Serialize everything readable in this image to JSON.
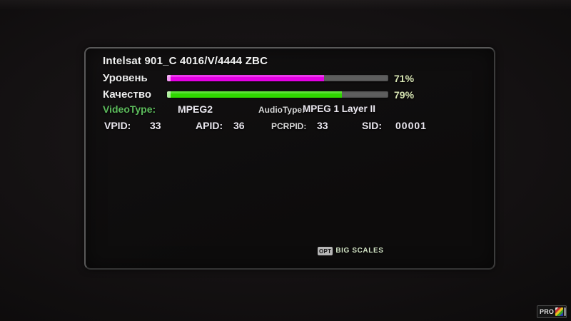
{
  "panel": {
    "title": "Intelsat 901_C 4016/V/4444 ZBC"
  },
  "meters": {
    "level": {
      "label": "Уровень",
      "percent": 71,
      "percent_label": "71%",
      "bar_color": "#e400e4"
    },
    "quality": {
      "label": "Качество",
      "percent": 79,
      "percent_label": "79%",
      "bar_color": "#2fd500"
    }
  },
  "stream": {
    "video_type_label": "VideoType:",
    "video_type_value": "MPEG2",
    "audio_type_label": "AudioType:",
    "audio_type_value": "MPEG 1 Layer II"
  },
  "pids": {
    "vpid_label": "VPID:",
    "vpid_value": "33",
    "apid_label": "APID:",
    "apid_value": "36",
    "pcrpid_label": "PCRPID:",
    "pcrpid_value": "33",
    "sid_label": "SID:",
    "sid_value": "00001"
  },
  "footer": {
    "opt_key": "OPT",
    "opt_action": "BIG SCALES"
  },
  "watermark": {
    "channel": "PRO"
  },
  "colors": {
    "level_bar": "#e400e4",
    "quality_bar": "#2fd500",
    "bar_track": "#5e5e5e",
    "accent_green": "#5cbb5c",
    "percent_text": "#d9e6b4"
  }
}
